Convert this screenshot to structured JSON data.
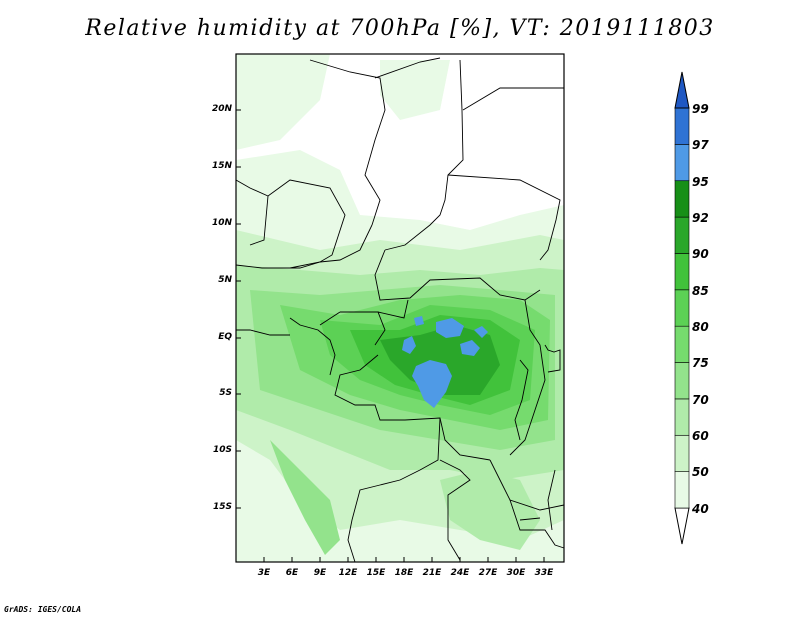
{
  "title": "Relative humidity at 700hPa [%], VT: 2019111803",
  "footer": "GrADS: IGES/COLA",
  "map": {
    "lat_labels": [
      "20N",
      "15N",
      "10N",
      "5N",
      "EQ",
      "5S",
      "10S",
      "15S"
    ],
    "lon_labels": [
      "3E",
      "6E",
      "9E",
      "12E",
      "15E",
      "18E",
      "21E",
      "24E",
      "27E",
      "30E",
      "33E"
    ]
  },
  "colorbar": {
    "levels": [
      "40",
      "50",
      "60",
      "70",
      "75",
      "80",
      "85",
      "90",
      "92",
      "95",
      "97",
      "99"
    ],
    "colors": [
      "#ffffff",
      "#e8fae6",
      "#cdf3c8",
      "#b0ebaa",
      "#93e38c",
      "#76db6e",
      "#5cd155",
      "#41c23b",
      "#2aa72a",
      "#178f17",
      "#4f9ae6",
      "#2f73d4",
      "#1f58c3"
    ]
  }
}
